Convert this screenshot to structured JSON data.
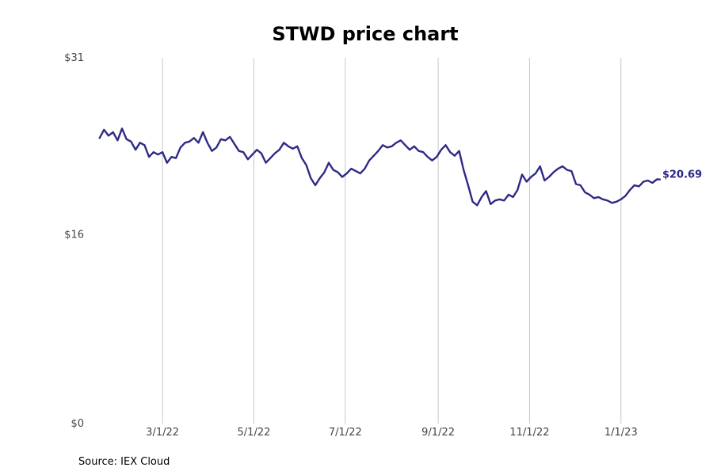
{
  "chart_data": {
    "type": "line",
    "title": "STWD price chart",
    "xlabel": "",
    "ylabel": "",
    "source": "Source: IEX Cloud",
    "x_range": [
      "2022-01-15",
      "2023-02-05"
    ],
    "ylim": [
      0,
      31
    ],
    "y_ticks": [
      {
        "value": 0,
        "label": "$0"
      },
      {
        "value": 16,
        "label": "$16"
      },
      {
        "value": 31,
        "label": "$31"
      }
    ],
    "x_ticks": [
      {
        "date": "2022-03-01",
        "label": "3/1/22"
      },
      {
        "date": "2022-05-01",
        "label": "5/1/22"
      },
      {
        "date": "2022-07-01",
        "label": "7/1/22"
      },
      {
        "date": "2022-09-01",
        "label": "9/1/22"
      },
      {
        "date": "2022-11-01",
        "label": "11/1/22"
      },
      {
        "date": "2023-01-01",
        "label": "1/1/23"
      }
    ],
    "grid": "vertical",
    "end_label": "$20.69",
    "line_color": "#2e2a86",
    "series": [
      {
        "x": [
          "2022-01-18",
          "2022-01-21",
          "2022-01-24",
          "2022-01-27",
          "2022-01-30",
          "2022-02-02",
          "2022-02-05",
          "2022-02-08",
          "2022-02-11",
          "2022-02-14",
          "2022-02-17",
          "2022-02-20",
          "2022-02-23",
          "2022-02-26",
          "2022-03-01",
          "2022-03-04",
          "2022-03-07",
          "2022-03-10",
          "2022-03-13",
          "2022-03-16",
          "2022-03-19",
          "2022-03-22",
          "2022-03-25",
          "2022-03-28",
          "2022-03-31",
          "2022-04-03",
          "2022-04-06",
          "2022-04-09",
          "2022-04-12",
          "2022-04-15",
          "2022-04-18",
          "2022-04-21",
          "2022-04-24",
          "2022-04-27",
          "2022-04-30",
          "2022-05-03",
          "2022-05-06",
          "2022-05-09",
          "2022-05-12",
          "2022-05-15",
          "2022-05-18",
          "2022-05-21",
          "2022-05-24",
          "2022-05-27",
          "2022-05-30",
          "2022-06-02",
          "2022-06-05",
          "2022-06-08",
          "2022-06-11",
          "2022-06-14",
          "2022-06-17",
          "2022-06-20",
          "2022-06-23",
          "2022-06-26",
          "2022-06-29",
          "2022-07-02",
          "2022-07-05",
          "2022-07-08",
          "2022-07-11",
          "2022-07-14",
          "2022-07-17",
          "2022-07-20",
          "2022-07-23",
          "2022-07-26",
          "2022-07-29",
          "2022-08-01",
          "2022-08-04",
          "2022-08-07",
          "2022-08-10",
          "2022-08-13",
          "2022-08-16",
          "2022-08-19",
          "2022-08-22",
          "2022-08-25",
          "2022-08-28",
          "2022-08-31",
          "2022-09-03",
          "2022-09-06",
          "2022-09-09",
          "2022-09-12",
          "2022-09-15",
          "2022-09-18",
          "2022-09-21",
          "2022-09-24",
          "2022-09-27",
          "2022-09-30",
          "2022-10-03",
          "2022-10-06",
          "2022-10-09",
          "2022-10-12",
          "2022-10-15",
          "2022-10-18",
          "2022-10-21",
          "2022-10-24",
          "2022-10-27",
          "2022-10-30",
          "2022-11-02",
          "2022-11-05",
          "2022-11-08",
          "2022-11-11",
          "2022-11-14",
          "2022-11-17",
          "2022-11-20",
          "2022-11-23",
          "2022-11-26",
          "2022-11-29",
          "2022-12-02",
          "2022-12-05",
          "2022-12-08",
          "2022-12-11",
          "2022-12-14",
          "2022-12-17",
          "2022-12-20",
          "2022-12-23",
          "2022-12-26",
          "2022-12-29",
          "2023-01-01",
          "2023-01-04",
          "2023-01-07",
          "2023-01-10",
          "2023-01-13",
          "2023-01-16",
          "2023-01-19",
          "2023-01-22",
          "2023-01-25",
          "2023-01-27"
        ],
        "values": [
          24.2,
          24.9,
          24.4,
          24.7,
          24.0,
          25.0,
          24.1,
          23.9,
          23.2,
          23.8,
          23.6,
          22.6,
          23.0,
          22.8,
          23.0,
          22.1,
          22.6,
          22.5,
          23.4,
          23.8,
          23.9,
          24.2,
          23.8,
          24.7,
          23.8,
          23.1,
          23.4,
          24.1,
          24.0,
          24.3,
          23.7,
          23.1,
          23.0,
          22.4,
          22.8,
          23.2,
          22.9,
          22.1,
          22.5,
          22.9,
          23.2,
          23.8,
          23.5,
          23.3,
          23.5,
          22.5,
          21.9,
          20.8,
          20.2,
          20.8,
          21.3,
          22.1,
          21.5,
          21.3,
          20.9,
          21.2,
          21.6,
          21.4,
          21.2,
          21.6,
          22.3,
          22.7,
          23.1,
          23.6,
          23.4,
          23.5,
          23.8,
          24.0,
          23.6,
          23.2,
          23.5,
          23.1,
          23.0,
          22.6,
          22.3,
          22.6,
          23.2,
          23.6,
          23.0,
          22.7,
          23.1,
          21.5,
          20.2,
          18.8,
          18.5,
          19.2,
          19.7,
          18.6,
          18.9,
          19.0,
          18.9,
          19.4,
          19.2,
          19.8,
          21.1,
          20.5,
          20.9,
          21.2,
          21.8,
          20.6,
          20.9,
          21.3,
          21.6,
          21.8,
          21.5,
          21.4,
          20.3,
          20.2,
          19.6,
          19.4,
          19.1,
          19.2,
          19.0,
          18.9,
          18.7,
          18.8,
          19.0,
          19.3,
          19.8,
          20.2,
          20.1,
          20.5,
          20.6,
          20.4,
          20.7,
          20.69
        ]
      }
    ]
  }
}
